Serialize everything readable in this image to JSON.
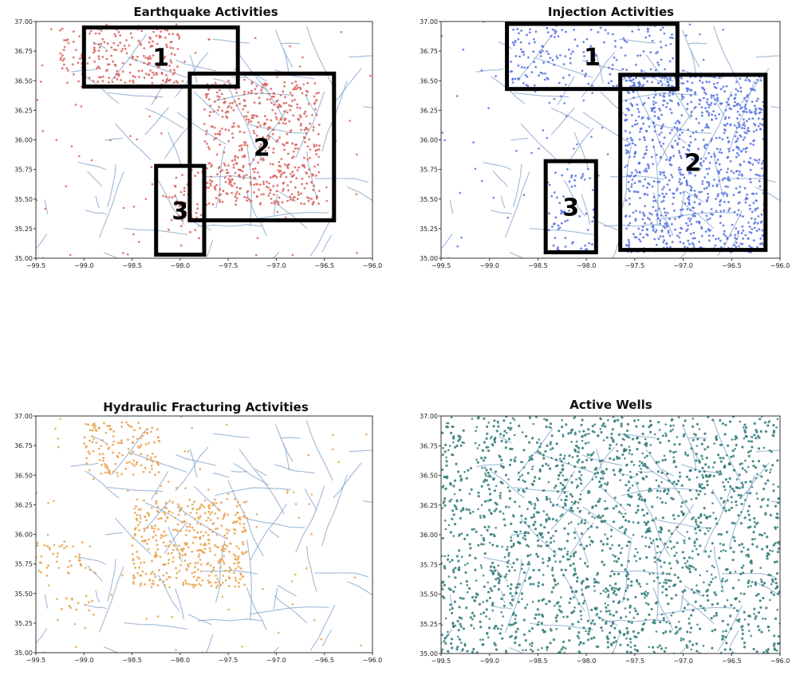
{
  "chart_data": [
    {
      "type": "scatter",
      "title": "Earthquake Activities",
      "xlim": [
        -99.5,
        -96.0
      ],
      "ylim": [
        35.0,
        37.0
      ],
      "xticks": [
        "−99.5",
        "−99.0",
        "−98.5",
        "−98.0",
        "−97.5",
        "−97.0",
        "−96.5",
        "−96.0"
      ],
      "yticks": [
        "35.00",
        "35.25",
        "35.50",
        "35.75",
        "36.00",
        "36.25",
        "36.50",
        "36.75",
        "37.00"
      ],
      "point_color": "#d9605a",
      "fault_color": "#7fa0c8",
      "clusters": [
        {
          "x": [
            -99.25,
            -98.0
          ],
          "y": [
            36.48,
            36.95
          ],
          "density": 0.55
        },
        {
          "x": [
            -97.75,
            -96.55
          ],
          "y": [
            35.45,
            36.5
          ],
          "density": 0.6
        },
        {
          "x": [
            -98.15,
            -97.8
          ],
          "y": [
            35.15,
            35.75
          ],
          "density": 0.25
        }
      ],
      "boxes": [
        {
          "label": "1",
          "x": [
            -99.0,
            -97.4
          ],
          "y": [
            36.45,
            36.95
          ]
        },
        {
          "label": "2",
          "x": [
            -97.9,
            -96.4
          ],
          "y": [
            35.32,
            36.56
          ]
        },
        {
          "label": "3",
          "x": [
            -98.25,
            -97.75
          ],
          "y": [
            35.03,
            35.78
          ]
        }
      ]
    },
    {
      "type": "scatter",
      "title": "Injection Activities",
      "xlim": [
        -99.5,
        -96.0
      ],
      "ylim": [
        35.0,
        37.0
      ],
      "xticks": [
        "−99.5",
        "−99.0",
        "−98.5",
        "−98.0",
        "−97.5",
        "−97.0",
        "−96.5",
        "−96.0"
      ],
      "yticks": [
        "35.00",
        "35.25",
        "35.50",
        "35.75",
        "36.00",
        "36.25",
        "36.50",
        "36.75",
        "37.00"
      ],
      "point_color": "#5570e0",
      "fault_color": "#7fa0c8",
      "clusters": [
        {
          "x": [
            -98.8,
            -97.1
          ],
          "y": [
            36.45,
            36.98
          ],
          "density": 0.3
        },
        {
          "x": [
            -97.6,
            -96.15
          ],
          "y": [
            35.05,
            36.55
          ],
          "density": 0.65
        },
        {
          "x": [
            -98.4,
            -97.9
          ],
          "y": [
            35.05,
            35.8
          ],
          "density": 0.25
        }
      ],
      "boxes": [
        {
          "label": "1",
          "x": [
            -98.82,
            -97.06
          ],
          "y": [
            36.43,
            36.98
          ]
        },
        {
          "label": "2",
          "x": [
            -97.65,
            -96.15
          ],
          "y": [
            35.07,
            36.55
          ]
        },
        {
          "label": "3",
          "x": [
            -98.42,
            -97.9
          ],
          "y": [
            35.05,
            35.82
          ]
        }
      ]
    },
    {
      "type": "scatter",
      "title": "Hydraulic Fracturing Activities",
      "xlim": [
        -99.5,
        -96.0
      ],
      "ylim": [
        35.0,
        37.0
      ],
      "xticks": [
        "−99.5",
        "−99.0",
        "−98.5",
        "−98.0",
        "−97.5",
        "−97.0",
        "−96.5",
        "−96.0"
      ],
      "yticks": [
        "35.00",
        "35.25",
        "35.50",
        "35.75",
        "36.00",
        "36.25",
        "36.50",
        "36.75",
        "37.00"
      ],
      "point_color": "#e8a14a",
      "fault_color": "#7fa0c8",
      "clusters": [
        {
          "x": [
            -99.0,
            -98.2
          ],
          "y": [
            36.5,
            36.95
          ],
          "density": 0.55
        },
        {
          "x": [
            -98.5,
            -97.3
          ],
          "y": [
            35.55,
            36.3
          ],
          "density": 0.65
        },
        {
          "x": [
            -99.5,
            -99.0
          ],
          "y": [
            35.65,
            35.95
          ],
          "density": 0.35
        },
        {
          "x": [
            -99.3,
            -98.9
          ],
          "y": [
            35.35,
            35.5
          ],
          "density": 0.3
        }
      ],
      "boxes": []
    },
    {
      "type": "scatter",
      "title": "Active Wells",
      "xlim": [
        -99.5,
        -96.0
      ],
      "ylim": [
        35.0,
        37.0
      ],
      "xticks": [
        "−99.5",
        "−99.0",
        "−98.5",
        "−98.0",
        "−97.5",
        "−97.0",
        "−96.5",
        "−96.0"
      ],
      "yticks": [
        "35.00",
        "35.25",
        "35.50",
        "35.75",
        "36.00",
        "36.25",
        "36.50",
        "36.75",
        "37.00"
      ],
      "point_color": "#2e7a78",
      "fault_color": "#7fa0c8",
      "clusters": [
        {
          "x": [
            -99.5,
            -96.0
          ],
          "y": [
            35.0,
            37.0
          ],
          "density": 0.75
        }
      ],
      "boxes": []
    }
  ]
}
